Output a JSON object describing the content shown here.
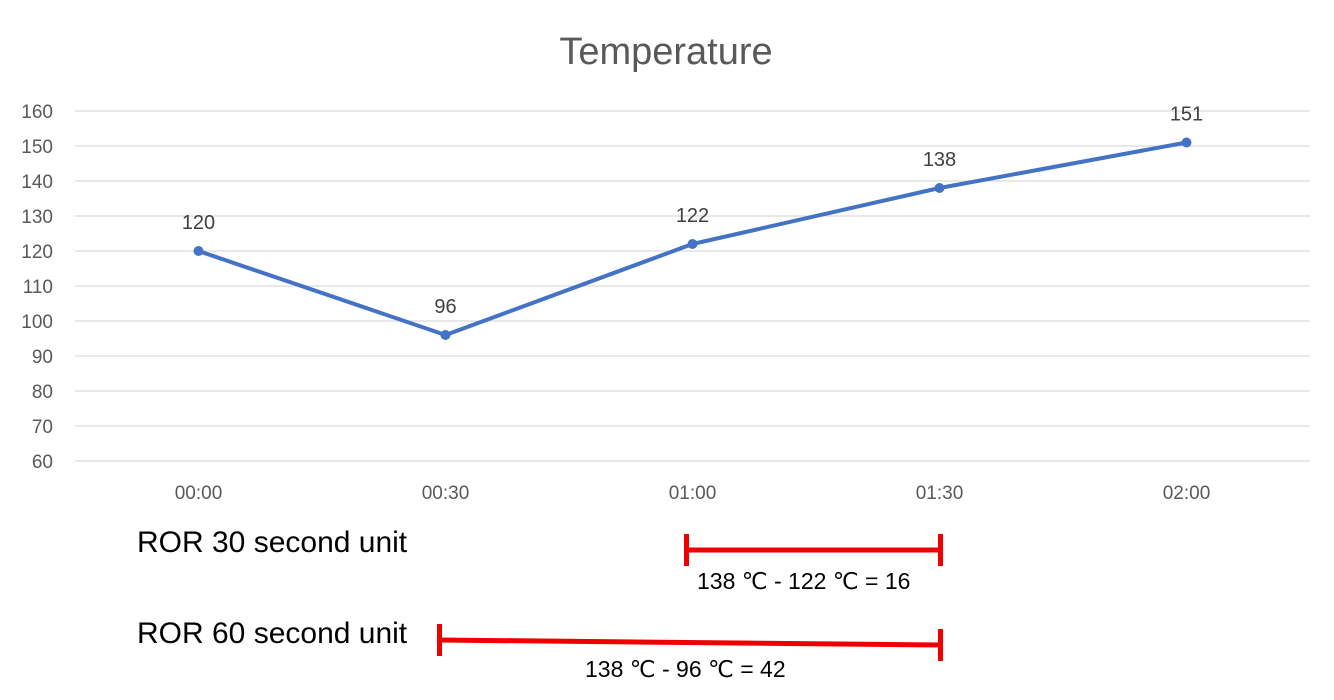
{
  "chart_data": {
    "type": "line",
    "title": "Temperature",
    "xlabel": "",
    "ylabel": "",
    "categories": [
      "00:00",
      "00:30",
      "01:00",
      "01:30",
      "02:00"
    ],
    "series": [
      {
        "values": [
          120,
          96,
          122,
          138,
          151
        ],
        "color": "#4472C4"
      }
    ],
    "ylim": [
      60,
      160
    ],
    "yticks": [
      60,
      70,
      80,
      90,
      100,
      110,
      120,
      130,
      140,
      150,
      160
    ],
    "grid": true,
    "data_labels": true
  },
  "annotations": [
    {
      "label": "ROR 30 second unit",
      "from": "01:00",
      "to": "01:30",
      "formula": "138 ℃ - 122 ℃ = 16",
      "color": "#EE0000"
    },
    {
      "label": "ROR 60 second unit",
      "from": "00:30",
      "to": "01:30",
      "formula": "138 ℃ - 96 ℃ = 42",
      "color": "#EE0000"
    }
  ]
}
